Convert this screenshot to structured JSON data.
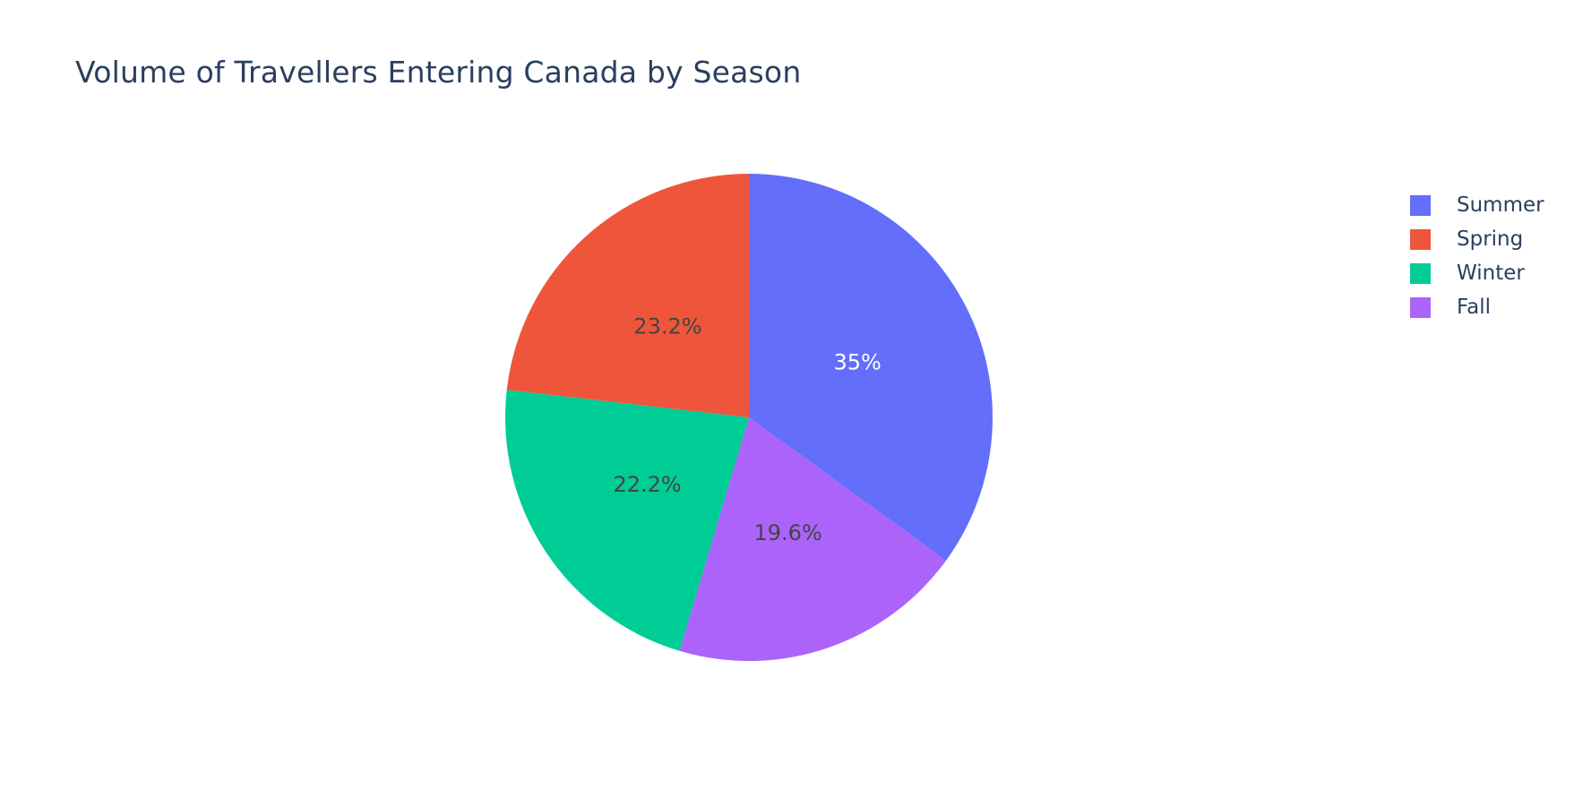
{
  "chart_data": {
    "type": "pie",
    "title": "Volume of Travellers Entering Canada by Season",
    "sort": "descending",
    "direction": "clockwise",
    "start": "top",
    "slices": [
      {
        "label": "Summer",
        "percent": 35.0,
        "percent_label": "35%",
        "color": "#636efa",
        "text_color": "#ffffff"
      },
      {
        "label": "Fall",
        "percent": 19.6,
        "percent_label": "19.6%",
        "color": "#ab63fa",
        "text_color": "#444444"
      },
      {
        "label": "Winter",
        "percent": 22.2,
        "percent_label": "22.2%",
        "color": "#00cc96",
        "text_color": "#444444"
      },
      {
        "label": "Spring",
        "percent": 23.2,
        "percent_label": "23.2%",
        "color": "#ef553b",
        "text_color": "#444444"
      }
    ],
    "legend": {
      "placement": "top-right",
      "items": [
        {
          "label": "Summer",
          "color": "#636efa"
        },
        {
          "label": "Spring",
          "color": "#ef553b"
        },
        {
          "label": "Winter",
          "color": "#00cc96"
        },
        {
          "label": "Fall",
          "color": "#ab63fa"
        }
      ]
    }
  }
}
